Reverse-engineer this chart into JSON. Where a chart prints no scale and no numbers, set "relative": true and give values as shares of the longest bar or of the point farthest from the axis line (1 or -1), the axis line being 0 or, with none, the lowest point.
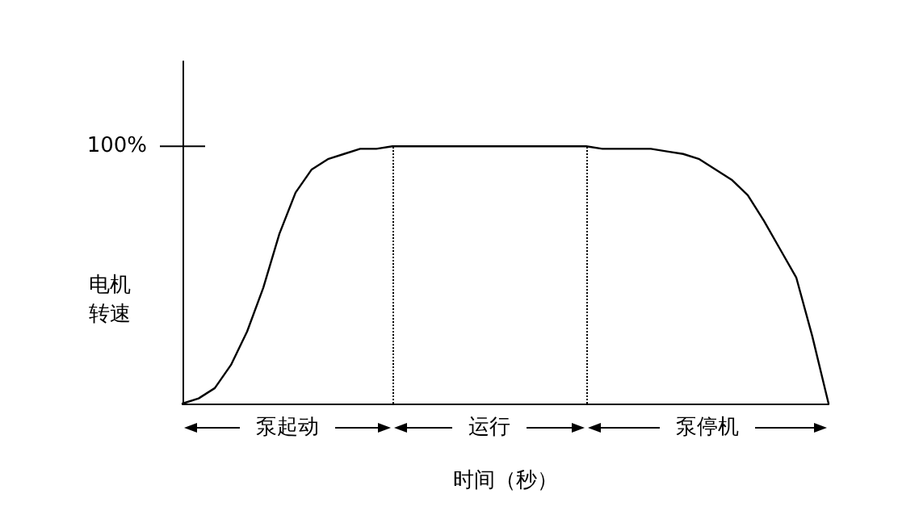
{
  "chart_data": {
    "type": "line",
    "relative": true,
    "xlabel": "时间（秒）",
    "ylabel": "电机转速",
    "categories": [
      null,
      null,
      null,
      null,
      null,
      null,
      null,
      null,
      null,
      null,
      null,
      null,
      null,
      null,
      null,
      null,
      null,
      null,
      null,
      null,
      null,
      null,
      null,
      null,
      null,
      null,
      null,
      null,
      null,
      null,
      null,
      null,
      null,
      null,
      null,
      null,
      null,
      null,
      null,
      null,
      null
    ],
    "values": [
      0,
      0.02,
      0.06,
      0.15,
      0.28,
      0.45,
      0.66,
      0.82,
      0.91,
      0.95,
      0.97,
      0.99,
      0.99,
      1,
      1,
      1,
      1,
      1,
      1,
      1,
      1,
      1,
      1,
      1,
      1,
      1,
      0.99,
      0.99,
      0.99,
      0.99,
      0.98,
      0.97,
      0.95,
      0.91,
      0.87,
      0.81,
      0.71,
      0.6,
      0.49,
      0.26,
      0
    ],
    "color": "#000000",
    "grid": false,
    "marker": "none",
    "line_style": "solid",
    "ref_lines": [
      {
        "axis": "y",
        "value": 1,
        "label": "100%"
      }
    ],
    "annotations": [
      "泵起动",
      "运行",
      "泵停机"
    ]
  }
}
